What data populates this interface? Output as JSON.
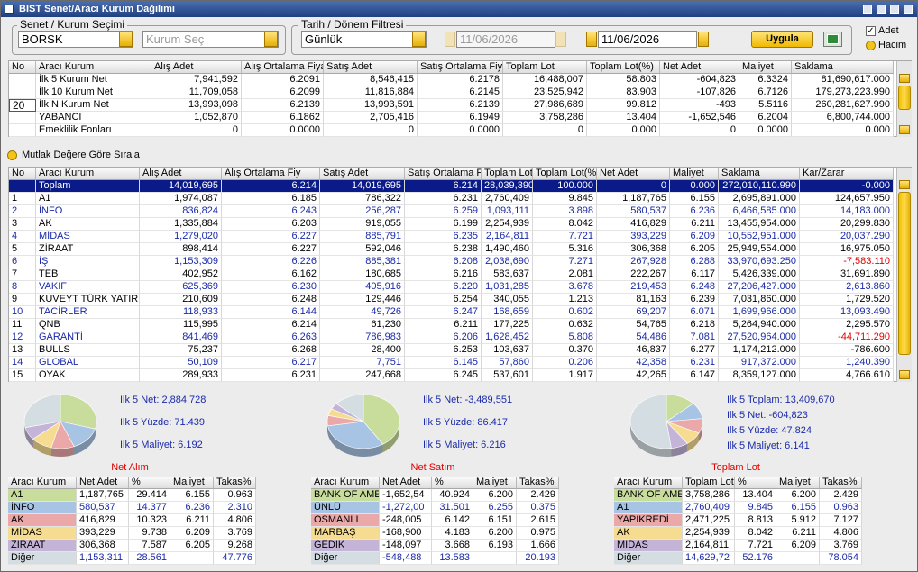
{
  "window": {
    "title": "BIST Senet/Aracı Kurum Dağılımı"
  },
  "filters": {
    "symbol_group": "Senet / Kurum Seçimi",
    "symbol": "BORSK",
    "broker_placeholder": "Kurum Seç",
    "date_group": "Tarih / Dönem Filtresi",
    "period": "Günlük",
    "date_from": "11/06/2026",
    "date_to": "11/06/2026",
    "apply": "Uygula",
    "options": [
      "Adet",
      "Hacim"
    ]
  },
  "summary": {
    "headers": [
      "No",
      "Aracı Kurum",
      "Alış Adet",
      "Alış Ortalama Fiyat",
      "Satış Adet",
      "Satış Ortalama Fiya",
      "Toplam Lot",
      "Toplam Lot(%)",
      "Net Adet",
      "Maliyet",
      "Saklama"
    ],
    "rows": [
      [
        null,
        "İlk 5 Kurum Net",
        "7,941,592",
        "6.2091",
        "8,546,415",
        "6.2178",
        "16,488,007",
        "58.803",
        "-604,823",
        "6.3324",
        "81,690,617.000"
      ],
      [
        null,
        "İlk 10 Kurum Net",
        "11,709,058",
        "6.2099",
        "11,816,884",
        "6.2145",
        "23,525,942",
        "83.903",
        "-107,826",
        "6.7126",
        "179,273,223.990"
      ],
      [
        "20",
        "İlk N Kurum Net",
        "13,993,098",
        "6.2139",
        "13,993,591",
        "6.2139",
        "27,986,689",
        "99.812",
        "-493",
        "5.5116",
        "260,281,627.990"
      ],
      [
        null,
        "YABANCI",
        "1,052,870",
        "6.1862",
        "2,705,416",
        "6.1949",
        "3,758,286",
        "13.404",
        "-1,652,546",
        "6.2004",
        "6,800,744.000"
      ],
      [
        null,
        "Emeklilik Fonları",
        "0",
        "0.0000",
        "0",
        "0.0000",
        "0",
        "0.000",
        "0",
        "0.0000",
        "0.000"
      ]
    ]
  },
  "sort_option": "Mutlak Değere Göre Sırala",
  "table": {
    "headers": [
      "No",
      "Aracı Kurum",
      "Alış Adet",
      "Alış Ortalama Fiy",
      "Satış Adet",
      "Satış Ortalama Fi",
      "Toplam Lot",
      "Toplam Lot(%",
      "Net Adet",
      "Maliyet",
      "Saklama",
      "Kar/Zarar"
    ],
    "rows": [
      [
        null,
        "Toplam",
        "14,019,695",
        "6.214",
        "14,019,695",
        "6.214",
        "28,039,390",
        "100.000",
        "0",
        "0.000",
        "272,010,110.990",
        "-0.000"
      ],
      [
        "1",
        "A1",
        "1,974,087",
        "6.185",
        "786,322",
        "6.231",
        "2,760,409",
        "9.845",
        "1,187,765",
        "6.155",
        "2,695,891.000",
        "124,657.950"
      ],
      [
        "2",
        "İNFO",
        "836,824",
        "6.243",
        "256,287",
        "6.259",
        "1,093,111",
        "3.898",
        "580,537",
        "6.236",
        "6,466,585.000",
        "14,183.000"
      ],
      [
        "3",
        "AK",
        "1,335,884",
        "6.203",
        "919,055",
        "6.199",
        "2,254,939",
        "8.042",
        "416,829",
        "6.211",
        "13,455,954.000",
        "20,299.830"
      ],
      [
        "4",
        "MİDAS",
        "1,279,020",
        "6.227",
        "885,791",
        "6.235",
        "2,164,811",
        "7.721",
        "393,229",
        "6.209",
        "10,552,951.000",
        "20,037.290"
      ],
      [
        "5",
        "ZİRAAT",
        "898,414",
        "6.227",
        "592,046",
        "6.238",
        "1,490,460",
        "5.316",
        "306,368",
        "6.205",
        "25,949,554.000",
        "16,975.050"
      ],
      [
        "6",
        "İŞ",
        "1,153,309",
        "6.226",
        "885,381",
        "6.208",
        "2,038,690",
        "7.271",
        "267,928",
        "6.288",
        "33,970,693.250",
        "-7,583.110"
      ],
      [
        "7",
        "TEB",
        "402,952",
        "6.162",
        "180,685",
        "6.216",
        "583,637",
        "2.081",
        "222,267",
        "6.117",
        "5,426,339.000",
        "31,691.890"
      ],
      [
        "8",
        "VAKIF",
        "625,369",
        "6.230",
        "405,916",
        "6.220",
        "1,031,285",
        "3.678",
        "219,453",
        "6.248",
        "27,206,427.000",
        "2,613.860"
      ],
      [
        "9",
        "KUVEYT TÜRK YATIRI",
        "210,609",
        "6.248",
        "129,446",
        "6.254",
        "340,055",
        "1.213",
        "81,163",
        "6.239",
        "7,031,860.000",
        "1,729.520"
      ],
      [
        "10",
        "TACİRLER",
        "118,933",
        "6.144",
        "49,726",
        "6.247",
        "168,659",
        "0.602",
        "69,207",
        "6.071",
        "1,699,966.000",
        "13,093.490"
      ],
      [
        "11",
        "QNB",
        "115,995",
        "6.214",
        "61,230",
        "6.211",
        "177,225",
        "0.632",
        "54,765",
        "6.218",
        "5,264,940.000",
        "2,295.570"
      ],
      [
        "12",
        "GARANTİ",
        "841,469",
        "6.263",
        "786,983",
        "6.206",
        "1,628,452",
        "5.808",
        "54,486",
        "7.081",
        "27,520,964.000",
        "-44,711.290"
      ],
      [
        "13",
        "BULLS",
        "75,237",
        "6.268",
        "28,400",
        "6.253",
        "103,637",
        "0.370",
        "46,837",
        "6.277",
        "1,174,212.000",
        "-786.600"
      ],
      [
        "14",
        "GLOBAL",
        "50,109",
        "6.217",
        "7,751",
        "6.145",
        "57,860",
        "0.206",
        "42,358",
        "6.231",
        "917,372.000",
        "1,240.390"
      ],
      [
        "15",
        "OYAK",
        "289,933",
        "6.231",
        "247,668",
        "6.245",
        "537,601",
        "1.917",
        "42,265",
        "6.147",
        "8,359,127.000",
        "4,766.610"
      ]
    ]
  },
  "panels": [
    {
      "title": "Net Alım",
      "stats": [
        "Ilk 5 Net: 2,884,728",
        "Ilk 5 Yüzde: 71.439",
        "Ilk 5 Maliyet: 6.192"
      ],
      "colors": [
        "#c8dc9c",
        "#a8c4e4",
        "#eaa8a8",
        "#f6dc90",
        "#c4b4d8",
        "#d4dee2"
      ],
      "headers": [
        "Aracı Kurum",
        "Net Adet",
        "%",
        "Maliyet",
        "Takas%"
      ],
      "rows": [
        [
          "A1",
          "1,187,765",
          "29.414",
          "6.155",
          "0.963"
        ],
        [
          "İNFO",
          "580,537",
          "14.377",
          "6.236",
          "2.310"
        ],
        [
          "AK",
          "416,829",
          "10.323",
          "6.211",
          "4.806"
        ],
        [
          "MİDAS",
          "393,229",
          "9.738",
          "6.209",
          "3.769"
        ],
        [
          "ZİRAAT",
          "306,368",
          "7.587",
          "6.205",
          "9.268"
        ],
        [
          "Diğer",
          "1,153,311",
          "28.561",
          null,
          "47.776"
        ]
      ]
    },
    {
      "title": "Net Satım",
      "stats": [
        "Ilk 5 Net: -3,489,551",
        "Ilk 5 Yüzde: 86.417",
        "Ilk 5 Maliyet: 6.216"
      ],
      "colors": [
        "#c8dc9c",
        "#a8c4e4",
        "#eaa8a8",
        "#f6dc90",
        "#c4b4d8",
        "#d4dee2"
      ],
      "headers": [
        "Aracı Kurum",
        "Net Adet",
        "%",
        "Maliyet",
        "Takas%"
      ],
      "rows": [
        [
          "BANK OF AME",
          "-1,652,54",
          "40.924",
          "6.200",
          "2.429"
        ],
        [
          "ÜNLÜ",
          "-1,272,00",
          "31.501",
          "6.255",
          "0.375"
        ],
        [
          "OSMANLI",
          "-248,005",
          "6.142",
          "6.151",
          "2.615"
        ],
        [
          "MARBAŞ",
          "-168,900",
          "4.183",
          "6.200",
          "0.975"
        ],
        [
          "GEDİK",
          "-148,097",
          "3.668",
          "6.193",
          "1.666"
        ],
        [
          "Diğer",
          "-548,488",
          "13.583",
          null,
          "20.193"
        ]
      ]
    },
    {
      "title": "Toplam Lot",
      "stats": [
        "Ilk 5 Toplam: 13,409,670",
        "Ilk 5 Net: -604,823",
        "Ilk 5 Yüzde: 47.824",
        "Ilk 5 Maliyet: 6.141"
      ],
      "colors": [
        "#c8dc9c",
        "#a8c4e4",
        "#eaa8a8",
        "#f6dc90",
        "#c4b4d8",
        "#d4dee2"
      ],
      "headers": [
        "Aracı Kurum",
        "Toplam Lot",
        "%",
        "Maliyet",
        "Takas%"
      ],
      "rows": [
        [
          "BANK OF AME",
          "3,758,286",
          "13.404",
          "6.200",
          "2.429"
        ],
        [
          "A1",
          "2,760,409",
          "9.845",
          "6.155",
          "0.963"
        ],
        [
          "YAPIKREDİ",
          "2,471,225",
          "8.813",
          "5.912",
          "7.127"
        ],
        [
          "AK",
          "2,254,939",
          "8.042",
          "6.211",
          "4.806"
        ],
        [
          "MİDAS",
          "2,164,811",
          "7.721",
          "6.209",
          "3.769"
        ],
        [
          "Diğer",
          "14,629,72",
          "52.176",
          null,
          "78.054"
        ]
      ]
    }
  ]
}
